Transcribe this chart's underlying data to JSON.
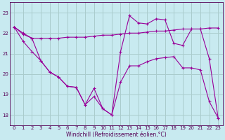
{
  "background_color": "#c8eaf0",
  "line_color": "#990099",
  "grid_color": "#aacccc",
  "xlabel": "Windchill (Refroidissement éolien,°C)",
  "xlim": [
    -0.5,
    23.5
  ],
  "ylim": [
    17.5,
    23.5
  ],
  "yticks": [
    18,
    19,
    20,
    21,
    22,
    23
  ],
  "xticks": [
    0,
    1,
    2,
    3,
    4,
    5,
    6,
    7,
    8,
    9,
    10,
    11,
    12,
    13,
    14,
    15,
    16,
    17,
    18,
    19,
    20,
    21,
    22,
    23
  ],
  "series1_x": [
    0,
    1,
    2,
    3,
    4,
    5,
    6,
    7,
    8,
    9,
    10,
    11,
    12,
    13,
    14,
    15,
    16,
    17,
    18,
    19,
    20,
    21,
    22,
    23
  ],
  "series1_y": [
    22.3,
    21.95,
    21.75,
    21.75,
    21.75,
    21.75,
    21.8,
    21.8,
    21.8,
    21.85,
    21.9,
    21.9,
    21.95,
    22.0,
    22.0,
    22.05,
    22.1,
    22.1,
    22.15,
    22.2,
    22.2,
    22.2,
    22.25,
    22.25
  ],
  "series2_x": [
    0,
    1,
    2,
    3,
    4,
    5,
    6,
    7,
    8,
    9,
    10,
    11,
    12,
    13,
    14,
    15,
    16,
    17,
    18,
    19,
    20,
    21,
    22,
    23
  ],
  "series2_y": [
    22.3,
    22.0,
    21.75,
    20.65,
    20.1,
    19.85,
    19.4,
    19.35,
    18.5,
    19.3,
    18.3,
    18.0,
    21.1,
    22.85,
    22.5,
    22.45,
    22.7,
    22.65,
    21.5,
    21.4,
    22.2,
    22.2,
    20.75,
    17.85
  ],
  "series3_x": [
    0,
    1,
    2,
    3,
    4,
    5,
    6,
    7,
    8,
    9,
    10,
    11,
    12,
    13,
    14,
    15,
    16,
    17,
    18,
    19,
    20,
    21,
    22,
    23
  ],
  "series3_y": [
    22.3,
    21.6,
    21.1,
    20.65,
    20.1,
    19.85,
    19.4,
    19.35,
    18.5,
    18.9,
    18.3,
    18.0,
    19.6,
    20.4,
    20.4,
    20.6,
    20.75,
    20.8,
    20.85,
    20.3,
    20.3,
    20.2,
    18.65,
    17.85
  ]
}
